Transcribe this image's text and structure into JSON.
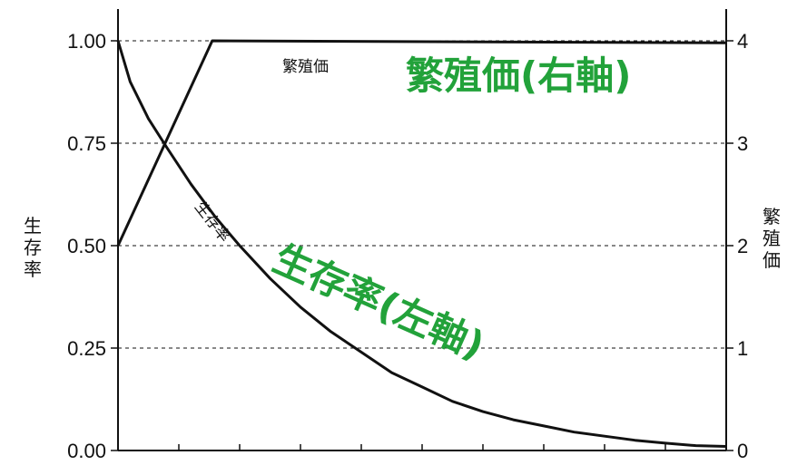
{
  "chart_data": {
    "type": "line",
    "title": "",
    "xlabel": "",
    "left_axis": {
      "ylabel": "生存率",
      "ylim": [
        0,
        1
      ],
      "ticks": [
        "0.00",
        "0.25",
        "0.50",
        "0.75",
        "1.00"
      ]
    },
    "right_axis": {
      "ylabel": "繁殖価",
      "ylim": [
        0,
        4
      ],
      "ticks": [
        "0",
        "1",
        "2",
        "3",
        "4"
      ]
    },
    "xlim": [
      0,
      100
    ],
    "grid": "dashed horizontal",
    "series": [
      {
        "name": "生存率",
        "axis": "left",
        "color": "#111111",
        "x": [
          0,
          2,
          5,
          8,
          12,
          16,
          20,
          25,
          30,
          35,
          40,
          45,
          50,
          55,
          60,
          65,
          70,
          75,
          80,
          85,
          90,
          95,
          100
        ],
        "values": [
          1.0,
          0.9,
          0.81,
          0.74,
          0.65,
          0.57,
          0.5,
          0.42,
          0.35,
          0.29,
          0.24,
          0.19,
          0.155,
          0.12,
          0.095,
          0.075,
          0.06,
          0.045,
          0.035,
          0.025,
          0.018,
          0.012,
          0.01
        ]
      },
      {
        "name": "繁殖価",
        "axis": "right",
        "color": "#111111",
        "x": [
          0,
          15.5,
          100
        ],
        "values": [
          2,
          4,
          3.98
        ]
      }
    ],
    "annotations": {
      "reproductive_callout": "繁殖価(右軸)",
      "survival_callout": "生存率(左軸)",
      "callout_color": "#22a23a"
    }
  }
}
